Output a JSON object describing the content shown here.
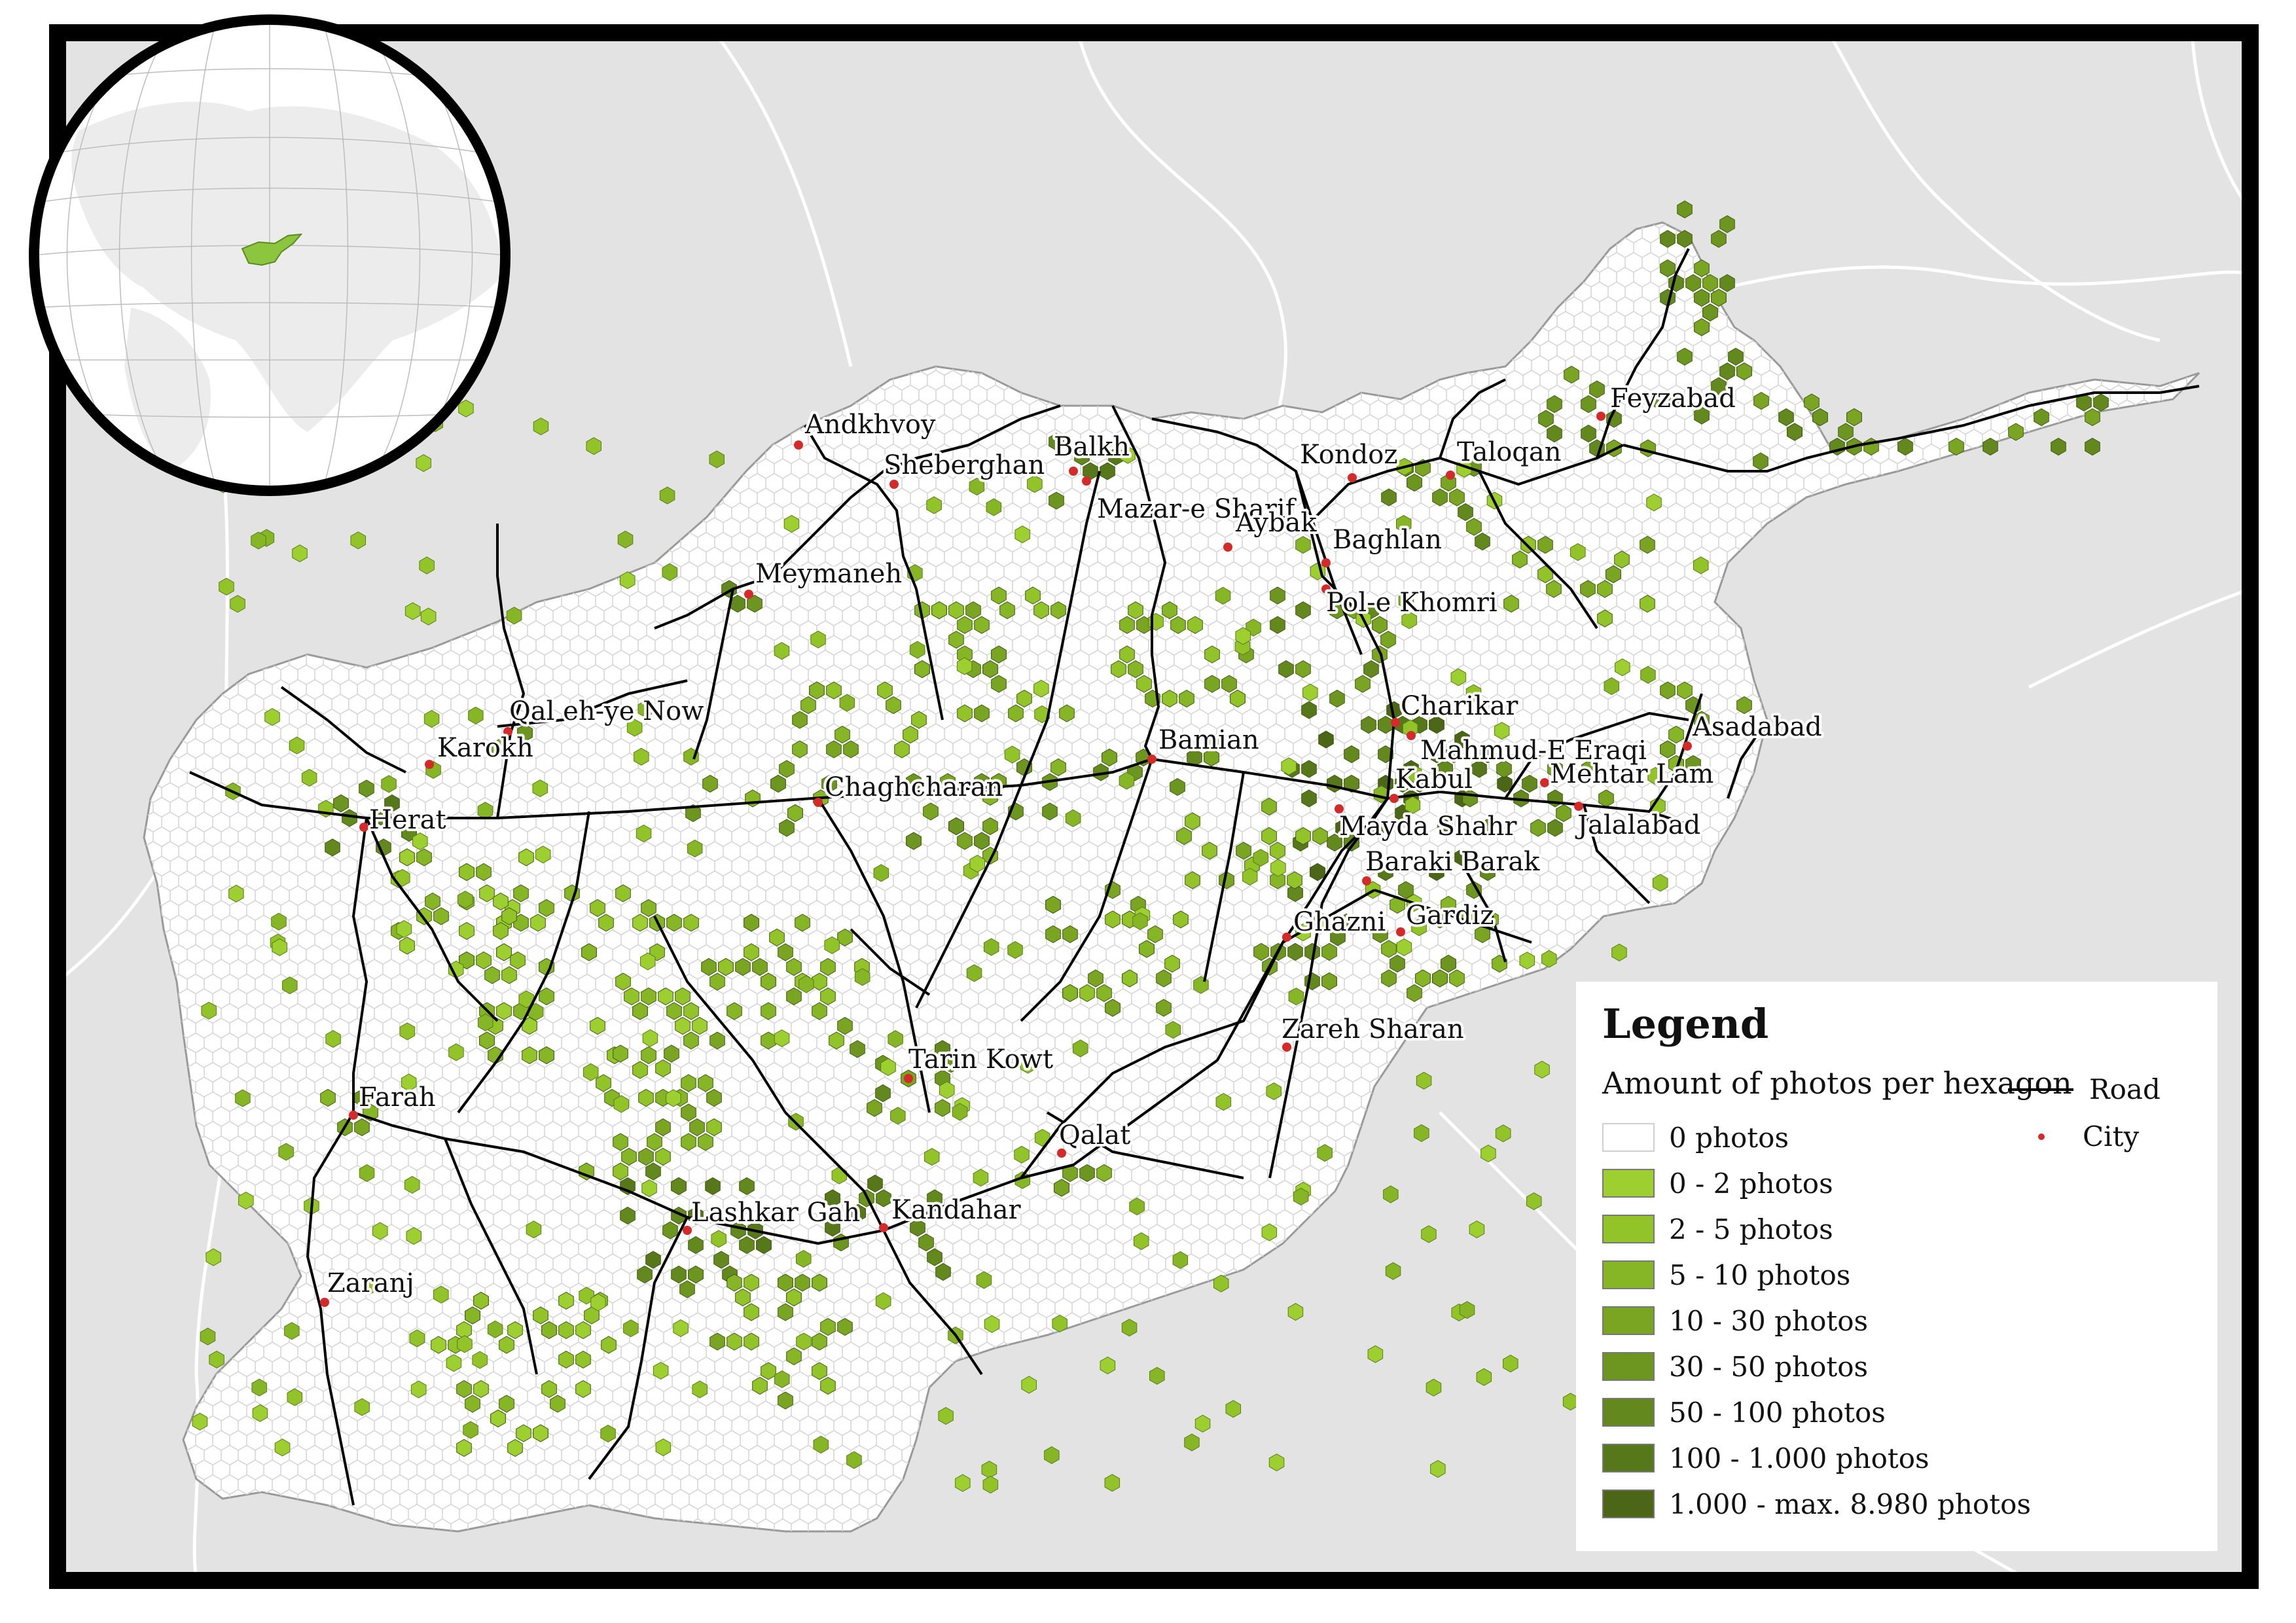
{
  "legend": {
    "title": "Legend",
    "subtitle": "Amount of photos per hexagon",
    "classes": [
      {
        "label": "0 photos",
        "color": "#ffffff"
      },
      {
        "label": "0 - 2 photos",
        "color": "#9ccf2f"
      },
      {
        "label": "2 - 5 photos",
        "color": "#92c42a"
      },
      {
        "label": "5 - 10 photos",
        "color": "#86b526"
      },
      {
        "label": "10 - 30 photos",
        "color": "#7aa523"
      },
      {
        "label": "30 - 50 photos",
        "color": "#6d9620"
      },
      {
        "label": "50 - 100 photos",
        "color": "#62881e"
      },
      {
        "label": "100 - 1.000 photos",
        "color": "#56771a"
      },
      {
        "label": "1.000 - max. 8.980 photos",
        "color": "#4a6616"
      }
    ],
    "road_label": "Road",
    "city_label": "City"
  },
  "colors": {
    "ocean_background": "#e3e3e3",
    "country_fill": "#ffffff",
    "frame": "#000000",
    "road": "#000000",
    "city_marker": "#d42a2a",
    "globe_highlight": "#8cc63f"
  },
  "cities": [
    {
      "name": "Andkhvoy"
    },
    {
      "name": "Balkh"
    },
    {
      "name": "Sheberghan"
    },
    {
      "name": "Mazar-e Sharif"
    },
    {
      "name": "Kondoz"
    },
    {
      "name": "Taloqan"
    },
    {
      "name": "Feyzabad"
    },
    {
      "name": "Aybak"
    },
    {
      "name": "Baghlan"
    },
    {
      "name": "Pol-e Khomri"
    },
    {
      "name": "Meymaneh"
    },
    {
      "name": "Qal eh-ye Now"
    },
    {
      "name": "Charikar"
    },
    {
      "name": "Mahmud-E Eraqi"
    },
    {
      "name": "Asadabad"
    },
    {
      "name": "Bamian"
    },
    {
      "name": "Kabul"
    },
    {
      "name": "Mehtar Lam"
    },
    {
      "name": "Karokh"
    },
    {
      "name": "Chaghcharan"
    },
    {
      "name": "Herat"
    },
    {
      "name": "Mayda Shahr"
    },
    {
      "name": "Jalalabad"
    },
    {
      "name": "Baraki Barak"
    },
    {
      "name": "Ghazni"
    },
    {
      "name": "Gardiz"
    },
    {
      "name": "Zareh Sharan"
    },
    {
      "name": "Tarin Kowt"
    },
    {
      "name": "Farah"
    },
    {
      "name": "Qalat"
    },
    {
      "name": "Lashkar Gah"
    },
    {
      "name": "Kandahar"
    },
    {
      "name": "Zaranj"
    }
  ]
}
